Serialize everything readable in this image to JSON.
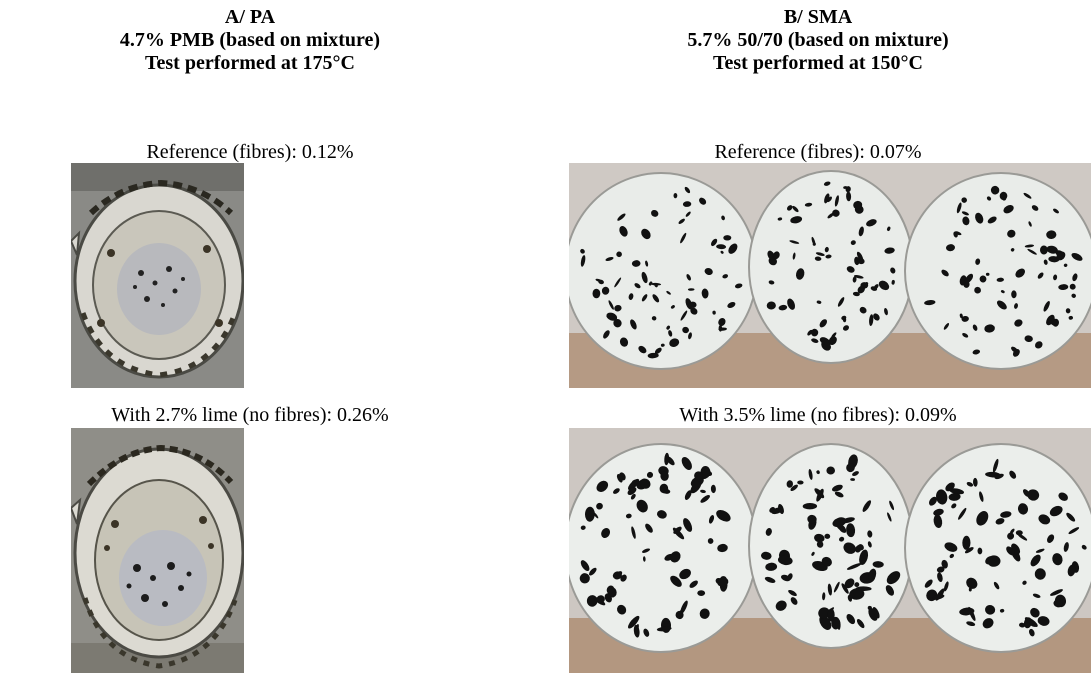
{
  "columns": [
    {
      "heading_line1": "A/ PA",
      "heading_line2": "4.7% PMB (based on mixture)",
      "heading_line3": "Test performed at 175°C",
      "photos": [
        {
          "caption": "Reference (fibres): 0.12%",
          "subject": "glass beaker with bitumen-coated aggregate residue"
        },
        {
          "caption": "With 2.7% lime (no fibres): 0.26%",
          "subject": "glass beaker with bitumen-coated aggregate residue"
        }
      ]
    },
    {
      "heading_line1": "B/ SMA",
      "heading_line2": "5.7% 50/70 (based on mixture)",
      "heading_line3": "Test performed at 150°C",
      "photos": [
        {
          "caption": "Reference (fibres): 0.07%",
          "subject": "three glass beakers with dark bitumen specks"
        },
        {
          "caption": "With 3.5% lime (no fibres): 0.09%",
          "subject": "three glass beakers with dark bitumen specks"
        }
      ]
    }
  ],
  "colors": {
    "speck": "#111111",
    "glass": "#e9ece9",
    "table": "#b79c86"
  }
}
